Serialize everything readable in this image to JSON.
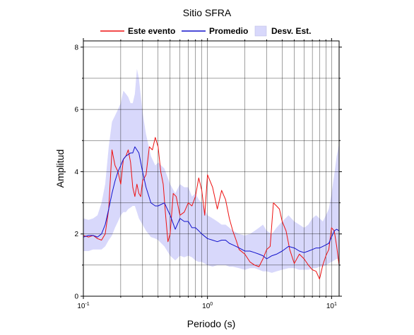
{
  "chart_data": {
    "type": "line",
    "title": "Sitio SFRA",
    "xlabel": "Periodo (s)",
    "ylabel": "Amplitud",
    "x_scale": "log",
    "xlim": [
      0.1,
      11.5
    ],
    "ylim": [
      0,
      8.2
    ],
    "x_ticks": [
      {
        "value": 0.1,
        "base": "10",
        "exp": "-1"
      },
      {
        "value": 1,
        "base": "10",
        "exp": "0"
      },
      {
        "value": 10,
        "base": "10",
        "exp": "1"
      }
    ],
    "y_ticks": [
      0,
      2,
      4,
      6,
      8
    ],
    "grid": true,
    "legend_position": "top",
    "legend": [
      {
        "label": "Este evento",
        "kind": "line",
        "color": "#ee1111"
      },
      {
        "label": "Promedio",
        "kind": "line",
        "color": "#1111cc"
      },
      {
        "label": "Desv. Est.",
        "kind": "band",
        "color": "#d8d8fb"
      }
    ],
    "series": [
      {
        "name": "Este evento",
        "color": "#ee1111",
        "x": [
          0.1,
          0.11,
          0.12,
          0.13,
          0.14,
          0.15,
          0.16,
          0.17,
          0.18,
          0.19,
          0.2,
          0.21,
          0.22,
          0.23,
          0.24,
          0.25,
          0.26,
          0.27,
          0.28,
          0.29,
          0.3,
          0.32,
          0.34,
          0.36,
          0.38,
          0.4,
          0.42,
          0.44,
          0.46,
          0.48,
          0.5,
          0.53,
          0.56,
          0.6,
          0.65,
          0.7,
          0.75,
          0.8,
          0.85,
          0.9,
          0.95,
          1.0,
          1.1,
          1.2,
          1.3,
          1.4,
          1.5,
          1.6,
          1.7,
          1.8,
          2.0,
          2.2,
          2.4,
          2.6,
          2.8,
          3.0,
          3.2,
          3.4,
          3.6,
          3.8,
          4.0,
          4.3,
          4.6,
          5.0,
          5.5,
          6.0,
          6.5,
          7.0,
          7.5,
          8.0,
          8.5,
          9.0,
          9.5,
          10.0,
          10.5,
          11.0,
          11.5
        ],
        "y": [
          1.95,
          1.9,
          1.95,
          1.85,
          1.8,
          2.0,
          2.8,
          4.7,
          4.2,
          4.0,
          3.6,
          4.4,
          4.5,
          4.7,
          4.3,
          3.5,
          3.2,
          3.6,
          3.3,
          3.2,
          3.7,
          3.9,
          4.8,
          4.7,
          5.1,
          4.8,
          4.0,
          3.6,
          2.6,
          1.75,
          2.0,
          3.3,
          3.2,
          2.6,
          2.7,
          3.0,
          2.9,
          3.2,
          3.8,
          3.4,
          2.6,
          3.9,
          3.5,
          2.8,
          3.4,
          3.1,
          2.5,
          2.1,
          1.8,
          1.5,
          1.35,
          1.1,
          1.0,
          0.95,
          1.2,
          1.5,
          1.6,
          3.0,
          2.9,
          2.8,
          2.4,
          2.1,
          1.5,
          1.05,
          1.35,
          1.2,
          1.0,
          0.85,
          0.8,
          0.55,
          1.0,
          1.3,
          1.5,
          2.2,
          2.1,
          1.6,
          1.0
        ]
      },
      {
        "name": "Promedio",
        "color": "#1111cc",
        "x": [
          0.1,
          0.11,
          0.12,
          0.13,
          0.14,
          0.15,
          0.16,
          0.17,
          0.18,
          0.19,
          0.2,
          0.21,
          0.22,
          0.23,
          0.24,
          0.25,
          0.26,
          0.28,
          0.3,
          0.32,
          0.35,
          0.38,
          0.4,
          0.45,
          0.5,
          0.55,
          0.6,
          0.65,
          0.7,
          0.75,
          0.8,
          0.85,
          0.9,
          1.0,
          1.1,
          1.2,
          1.3,
          1.4,
          1.5,
          1.6,
          1.7,
          1.8,
          2.0,
          2.2,
          2.4,
          2.6,
          2.8,
          3.0,
          3.3,
          3.6,
          4.0,
          4.5,
          5.0,
          5.5,
          6.0,
          6.5,
          7.0,
          7.5,
          8.0,
          8.5,
          9.0,
          9.5,
          10.0,
          10.5,
          11.0,
          11.5
        ],
        "y": [
          1.9,
          1.95,
          1.95,
          1.9,
          2.0,
          2.3,
          2.8,
          3.3,
          3.7,
          4.0,
          4.2,
          4.4,
          4.5,
          4.55,
          4.6,
          4.6,
          4.8,
          4.6,
          4.0,
          3.5,
          3.0,
          2.9,
          2.9,
          3.0,
          2.6,
          2.15,
          2.5,
          2.4,
          2.4,
          2.2,
          2.2,
          2.1,
          2.0,
          1.85,
          1.8,
          1.75,
          1.8,
          1.8,
          1.7,
          1.65,
          1.6,
          1.55,
          1.45,
          1.45,
          1.4,
          1.35,
          1.3,
          1.2,
          1.3,
          1.35,
          1.45,
          1.6,
          1.55,
          1.45,
          1.4,
          1.45,
          1.5,
          1.55,
          1.55,
          1.6,
          1.65,
          1.7,
          1.9,
          2.1,
          2.15,
          2.1
        ]
      }
    ],
    "band": {
      "name": "Desv. Est.",
      "color": "#d8d8fb",
      "x": [
        0.1,
        0.11,
        0.12,
        0.13,
        0.14,
        0.15,
        0.16,
        0.17,
        0.18,
        0.19,
        0.2,
        0.21,
        0.22,
        0.23,
        0.24,
        0.25,
        0.26,
        0.27,
        0.28,
        0.3,
        0.32,
        0.35,
        0.38,
        0.4,
        0.45,
        0.5,
        0.55,
        0.6,
        0.65,
        0.7,
        0.75,
        0.8,
        0.85,
        0.9,
        1.0,
        1.1,
        1.2,
        1.3,
        1.4,
        1.5,
        1.6,
        1.8,
        2.0,
        2.2,
        2.4,
        2.6,
        2.8,
        3.0,
        3.3,
        3.6,
        4.0,
        4.5,
        5.0,
        5.5,
        6.0,
        6.5,
        7.0,
        7.5,
        8.0,
        8.5,
        9.0,
        9.5,
        10.0,
        10.5,
        11.0,
        11.5
      ],
      "upper": [
        2.5,
        2.45,
        2.5,
        2.6,
        3.0,
        3.6,
        4.8,
        5.6,
        5.8,
        6.0,
        6.2,
        6.6,
        6.5,
        6.4,
        6.2,
        6.2,
        6.5,
        7.3,
        7.0,
        5.9,
        5.2,
        4.5,
        4.2,
        4.3,
        4.1,
        3.6,
        3.3,
        3.6,
        3.5,
        3.5,
        3.2,
        3.3,
        3.1,
        3.0,
        2.6,
        2.5,
        2.4,
        2.3,
        2.3,
        2.2,
        2.1,
        2.0,
        1.95,
        2.0,
        2.1,
        2.2,
        2.3,
        2.1,
        2.0,
        2.2,
        2.4,
        2.6,
        2.4,
        2.3,
        2.2,
        2.3,
        2.5,
        2.6,
        2.5,
        2.4,
        2.6,
        2.8,
        3.3,
        3.9,
        4.5,
        4.9
      ],
      "lower": [
        1.45,
        1.45,
        1.5,
        1.5,
        1.5,
        1.6,
        1.8,
        1.95,
        2.2,
        2.4,
        2.6,
        2.7,
        2.7,
        2.8,
        2.85,
        2.9,
        2.9,
        2.7,
        2.5,
        2.3,
        2.1,
        1.9,
        1.85,
        1.8,
        1.6,
        1.3,
        1.15,
        1.3,
        1.25,
        1.3,
        1.25,
        1.15,
        1.1,
        1.1,
        1.0,
        0.95,
        1.0,
        1.0,
        1.0,
        0.95,
        0.95,
        0.9,
        0.85,
        0.9,
        0.9,
        0.85,
        0.8,
        0.8,
        0.75,
        0.8,
        0.85,
        0.9,
        0.9,
        0.85,
        0.85,
        0.85,
        0.9,
        0.9,
        0.95,
        0.95,
        1.0,
        1.05,
        1.1,
        1.15,
        1.2,
        1.2
      ]
    }
  }
}
